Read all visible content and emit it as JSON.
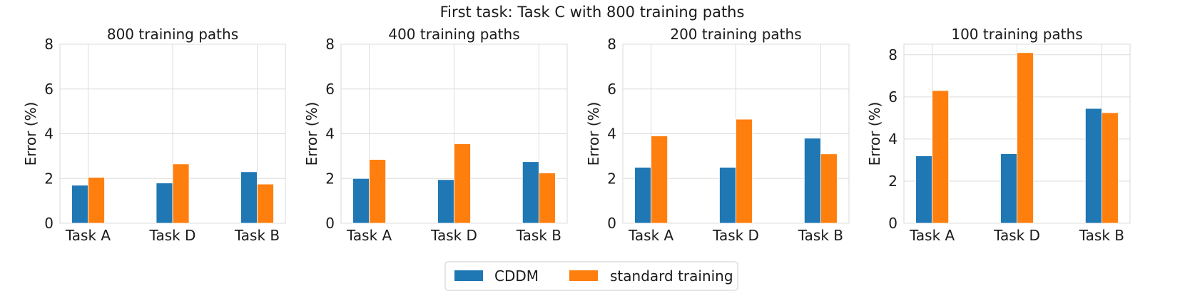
{
  "figure_title": "First task: Task C with 800 training paths",
  "colors": {
    "CDDM": "#1f77b4",
    "standard training": "#ff7f0e"
  },
  "legend": [
    {
      "name": "CDDM",
      "color": "#1f77b4"
    },
    {
      "name": "standard training",
      "color": "#ff7f0e"
    }
  ],
  "chart_data": [
    {
      "type": "bar",
      "title": "800 training paths",
      "categories": [
        "Task A",
        "Task D",
        "Task B"
      ],
      "ylabel": "Error (%)",
      "ylim": [
        0,
        8
      ],
      "yticks": [
        0,
        2,
        4,
        6,
        8
      ],
      "series": [
        {
          "name": "CDDM",
          "values": [
            1.7,
            1.8,
            2.3
          ]
        },
        {
          "name": "standard training",
          "values": [
            2.05,
            2.65,
            1.75
          ]
        }
      ]
    },
    {
      "type": "bar",
      "title": "400 training paths",
      "categories": [
        "Task A",
        "Task D",
        "Task B"
      ],
      "ylabel": "Error (%)",
      "ylim": [
        0,
        8
      ],
      "yticks": [
        0,
        2,
        4,
        6,
        8
      ],
      "series": [
        {
          "name": "CDDM",
          "values": [
            2.0,
            1.95,
            2.75
          ]
        },
        {
          "name": "standard training",
          "values": [
            2.85,
            3.55,
            2.25
          ]
        }
      ]
    },
    {
      "type": "bar",
      "title": "200 training paths",
      "categories": [
        "Task A",
        "Task D",
        "Task B"
      ],
      "ylabel": "Error (%)",
      "ylim": [
        0,
        8
      ],
      "yticks": [
        0,
        2,
        4,
        6,
        8
      ],
      "series": [
        {
          "name": "CDDM",
          "values": [
            2.5,
            2.5,
            3.8
          ]
        },
        {
          "name": "standard training",
          "values": [
            3.9,
            4.65,
            3.1
          ]
        }
      ]
    },
    {
      "type": "bar",
      "title": "100 training paths",
      "categories": [
        "Task A",
        "Task D",
        "Task B"
      ],
      "ylabel": "Error (%)",
      "ylim": [
        0,
        8.5
      ],
      "yticks": [
        0,
        2,
        4,
        6,
        8
      ],
      "series": [
        {
          "name": "CDDM",
          "values": [
            3.2,
            3.3,
            5.45
          ]
        },
        {
          "name": "standard training",
          "values": [
            6.3,
            8.1,
            5.25
          ]
        }
      ]
    }
  ]
}
